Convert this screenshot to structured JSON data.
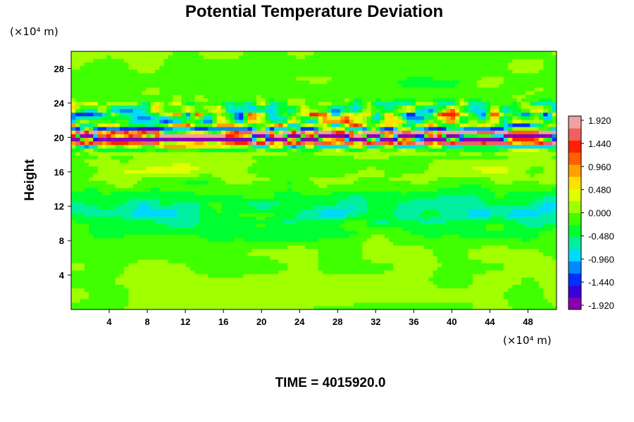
{
  "chart_data": {
    "type": "heatmap",
    "title": "Potential Temperature Deviation",
    "ylabel": "Height",
    "x_unit_label": "(×10⁴ m)",
    "y_unit_label": "(×10⁴ m)",
    "footer": "TIME = 4015920.0",
    "xlim": [
      0,
      51
    ],
    "ylim": [
      0,
      30
    ],
    "x_ticks": [
      4,
      8,
      12,
      16,
      20,
      24,
      28,
      32,
      36,
      40,
      44,
      48
    ],
    "y_ticks": [
      4,
      8,
      12,
      16,
      20,
      24,
      28
    ],
    "colorbar": {
      "min": -1.92,
      "max": 1.92,
      "tick_labels": [
        "1.920",
        "1.440",
        "0.960",
        "0.480",
        "0.000",
        "-0.480",
        "-0.960",
        "-1.440",
        "-1.920"
      ],
      "colors": [
        "#8a00b0",
        "#3a00d8",
        "#0030ff",
        "#0088ff",
        "#00d8ff",
        "#00f0a0",
        "#00ff30",
        "#40ff00",
        "#a0ff00",
        "#e0ff00",
        "#ffe000",
        "#ffa000",
        "#ff6000",
        "#ff2000",
        "#f06060",
        "#f0a0a0"
      ]
    },
    "background_value": 0.0,
    "features": [
      {
        "name": "main-band-positive",
        "x_range": [
          0,
          51
        ],
        "y_center": 20.3,
        "amplitude": 1.9
      },
      {
        "name": "main-band-negative",
        "x_range": [
          0,
          51
        ],
        "y_center": 19.8,
        "amplitude": -1.9
      },
      {
        "name": "upper-band-mixed",
        "x_range": [
          0,
          51
        ],
        "y_center": 22.5,
        "amplitude": 1.2
      },
      {
        "name": "lower-layer-negative",
        "x_range": [
          0,
          51
        ],
        "y_center": 11.0,
        "amplitude": -0.6
      }
    ]
  }
}
